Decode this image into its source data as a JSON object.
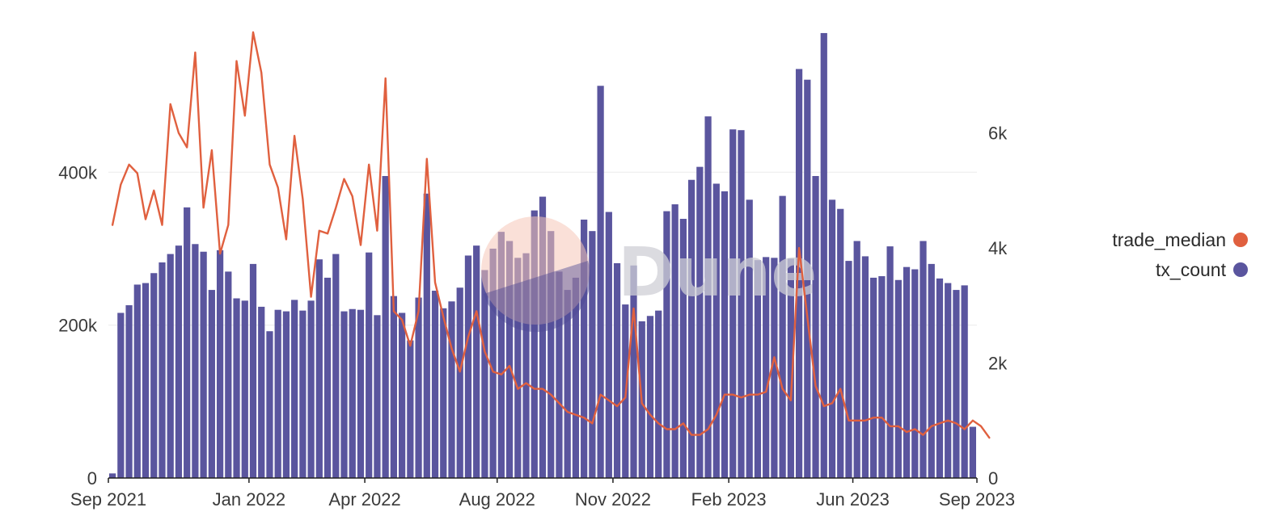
{
  "chart_data": {
    "type": "bar",
    "x_tick_labels": [
      "Sep 2021",
      "Jan 2022",
      "Apr 2022",
      "Aug 2022",
      "Nov 2022",
      "Feb 2023",
      "Jun 2023",
      "Sep 2023"
    ],
    "left_axis": {
      "ticks": [
        0,
        200000,
        400000
      ],
      "tick_labels": [
        "0",
        "200k",
        "400k"
      ],
      "ylim": [
        0,
        583000
      ]
    },
    "right_axis": {
      "ticks": [
        0,
        2000,
        4000,
        6000
      ],
      "tick_labels": [
        "0",
        "2k",
        "4k",
        "6k"
      ],
      "ylim": [
        0,
        7750
      ]
    },
    "grid": true,
    "legend_position": "right",
    "series": [
      {
        "name": "tx_count",
        "type": "bar",
        "axis": "left",
        "color": "#5a559e",
        "values": [
          6000,
          216000,
          226000,
          253000,
          255000,
          268000,
          282000,
          293000,
          304000,
          354000,
          306000,
          296000,
          246000,
          298000,
          270000,
          235000,
          232000,
          280000,
          224000,
          192000,
          220000,
          218000,
          233000,
          219000,
          232000,
          286000,
          262000,
          293000,
          218000,
          221000,
          220000,
          295000,
          213000,
          395000,
          238000,
          216000,
          180000,
          236000,
          372000,
          245000,
          222000,
          231000,
          249000,
          291000,
          304000,
          272000,
          300000,
          322000,
          310000,
          288000,
          294000,
          350000,
          368000,
          323000,
          270000,
          246000,
          262000,
          338000,
          323000,
          513000,
          348000,
          281000,
          227000,
          278000,
          205000,
          212000,
          219000,
          349000,
          358000,
          339000,
          390000,
          407000,
          473000,
          385000,
          375000,
          456000,
          455000,
          364000,
          285000,
          289000,
          288000,
          369000,
          287000,
          535000,
          521000,
          395000,
          582000,
          364000,
          352000,
          284000,
          310000,
          290000,
          262000,
          264000,
          303000,
          259000,
          276000,
          273000,
          310000,
          280000,
          261000,
          255000,
          246000,
          252000,
          67000
        ]
      },
      {
        "name": "trade_median",
        "type": "line",
        "axis": "right",
        "color": "#e0603f",
        "values": [
          4400,
          5100,
          5450,
          5300,
          4500,
          5000,
          4400,
          6500,
          6000,
          5750,
          7400,
          4700,
          5700,
          3900,
          4400,
          7250,
          6300,
          7750,
          7050,
          5450,
          5050,
          4150,
          5950,
          4850,
          3150,
          4300,
          4250,
          4700,
          5200,
          4900,
          4050,
          5450,
          4300,
          6950,
          2900,
          2750,
          2300,
          2900,
          5550,
          3400,
          2800,
          2250,
          1850,
          2450,
          2900,
          2200,
          1850,
          1800,
          1950,
          1550,
          1650,
          1550,
          1550,
          1450,
          1300,
          1150,
          1100,
          1050,
          950,
          1450,
          1350,
          1250,
          1400,
          2950,
          1300,
          1100,
          950,
          850,
          850,
          950,
          750,
          750,
          850,
          1100,
          1450,
          1450,
          1400,
          1450,
          1450,
          1500,
          2100,
          1550,
          1350,
          4000,
          2800,
          1600,
          1250,
          1300,
          1550,
          1000,
          1000,
          1000,
          1050,
          1050,
          900,
          900,
          800,
          850,
          750,
          900,
          950,
          1000,
          950,
          850,
          1000,
          900,
          700
        ],
        "approx_peak_values": []
      }
    ]
  },
  "legend": {
    "items": [
      {
        "label": "trade_median",
        "color": "#e0603f"
      },
      {
        "label": "tx_count",
        "color": "#5a559e"
      }
    ]
  },
  "watermark": {
    "text": "Dune"
  }
}
